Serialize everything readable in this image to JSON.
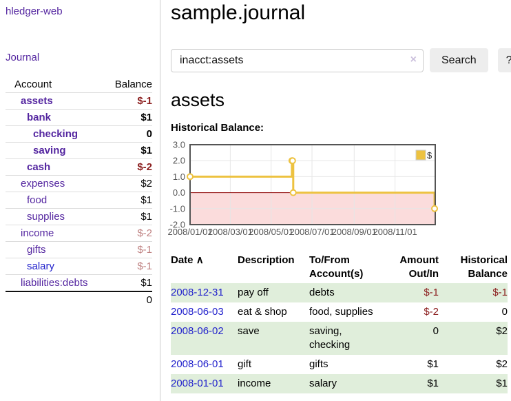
{
  "app": {
    "brand": "hledger-web"
  },
  "sidebar": {
    "nav": {
      "journal_label": "Journal"
    },
    "accounts": {
      "headers": {
        "account": "Account",
        "balance": "Balance"
      },
      "rows": [
        {
          "name": "assets",
          "indent": 1,
          "emph": true,
          "balance": "$-1"
        },
        {
          "name": "bank",
          "indent": 2,
          "emph": true,
          "balance": "$1"
        },
        {
          "name": "checking",
          "indent": 3,
          "emph": true,
          "balance": "0"
        },
        {
          "name": "saving",
          "indent": 3,
          "emph": true,
          "balance": "$1"
        },
        {
          "name": "cash",
          "indent": 2,
          "emph": true,
          "balance": "$-2"
        },
        {
          "name": "expenses",
          "indent": 1,
          "emph": false,
          "balance": "$2"
        },
        {
          "name": "food",
          "indent": 2,
          "emph": false,
          "balance": "$1"
        },
        {
          "name": "supplies",
          "indent": 2,
          "emph": false,
          "balance": "$1"
        },
        {
          "name": "income",
          "indent": 1,
          "emph": false,
          "balance": "$-2"
        },
        {
          "name": "gifts",
          "indent": 2,
          "emph": false,
          "balance": "$-1"
        },
        {
          "name": "salary",
          "indent": 2,
          "emph": false,
          "balance": "$-1",
          "unvisited": true
        },
        {
          "name": "liabilities:debts",
          "indent": 1,
          "emph": false,
          "balance": "$1"
        }
      ],
      "total": "0"
    }
  },
  "main": {
    "title": "sample.journal",
    "search": {
      "value": "inacct:assets",
      "clear_icon": "×",
      "button_label": "Search",
      "help_label": "?"
    },
    "account_heading": "assets",
    "chart_label": "Historical Balance:",
    "register": {
      "headers": {
        "date": "Date",
        "sort_icon": "∧",
        "description": "Description",
        "accounts": "To/From Account(s)",
        "amount": "Amount Out/In",
        "balance": "Historical Balance"
      },
      "rows": [
        {
          "date": "2008-12-31",
          "description": "pay off",
          "accounts": "debts",
          "amount": "$-1",
          "balance": "$-1"
        },
        {
          "date": "2008-06-03",
          "description": "eat & shop",
          "accounts": "food, supplies",
          "amount": "$-2",
          "balance": "0"
        },
        {
          "date": "2008-06-02",
          "description": "save",
          "accounts": "saving, checking",
          "amount": "0",
          "balance": "$2"
        },
        {
          "date": "2008-06-01",
          "description": "gift",
          "accounts": "gifts",
          "amount": "$1",
          "balance": "$2"
        },
        {
          "date": "2008-01-01",
          "description": "income",
          "accounts": "salary",
          "amount": "$1",
          "balance": "$1"
        }
      ]
    }
  },
  "chart_data": {
    "type": "line",
    "title": "Historical Balance:",
    "series": [
      {
        "name": "$",
        "color": "#edc240",
        "style": "steps",
        "point_dates": [
          "2008-01-01",
          "2008-06-01",
          "2008-06-02",
          "2008-06-03",
          "2008-12-31"
        ],
        "points": [
          [
            0,
            1
          ],
          [
            152,
            2
          ],
          [
            153,
            2
          ],
          [
            154,
            0
          ],
          [
            365,
            -1
          ]
        ]
      }
    ],
    "xlim": [
      0,
      366
    ],
    "ylim": [
      -2,
      3
    ],
    "yticks": [
      {
        "v": 3,
        "label": "3.0"
      },
      {
        "v": 2,
        "label": "2.0"
      },
      {
        "v": 1,
        "label": "1.0"
      },
      {
        "v": 0,
        "label": "0.0"
      },
      {
        "v": -1,
        "label": "-1.0"
      },
      {
        "v": -2,
        "label": "-2.0"
      }
    ],
    "xticks": [
      {
        "v": 0,
        "label": "2008/01/01"
      },
      {
        "v": 60,
        "label": "2008/03/01"
      },
      {
        "v": 121,
        "label": "2008/05/01"
      },
      {
        "v": 182,
        "label": "2008/07/01"
      },
      {
        "v": 245,
        "label": "2008/09/01"
      },
      {
        "v": 306,
        "label": "2008/11/01"
      }
    ],
    "legend": {
      "position": "top-right",
      "entries": [
        {
          "label": "$",
          "color": "#edc240"
        }
      ]
    },
    "grid": true,
    "negative_region_fill": "#fbdcdc",
    "zero_line_color": "#8b0000",
    "axis_label_color": "#545454",
    "border_color": "#545454"
  }
}
